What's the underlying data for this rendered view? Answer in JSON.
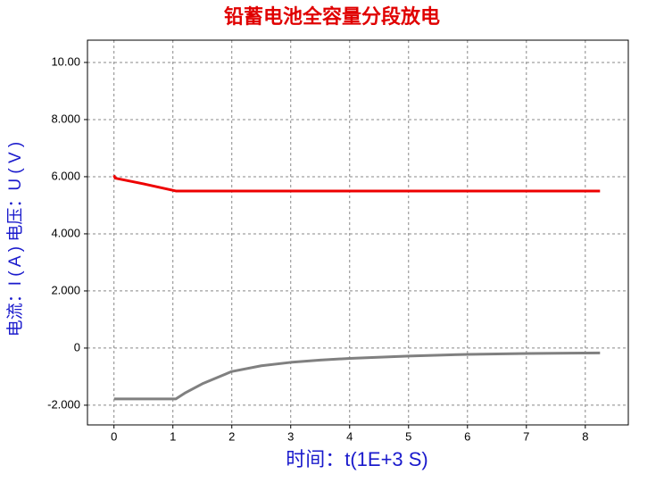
{
  "chart_data": {
    "type": "line",
    "title": "铅蓄电池全容量分段放电",
    "xlabel": "时间：t(1E+3 S)",
    "ylabel": "电流：I ( A )    电压：U ( V )",
    "x": [
      0,
      0.02,
      0.5,
      1.05,
      1.2,
      1.5,
      2,
      2.5,
      3,
      3.5,
      4,
      5,
      6,
      7,
      8.25
    ],
    "series": [
      {
        "name": "电压",
        "color": "#ee0000",
        "values": [
          6.05,
          5.95,
          5.75,
          5.5,
          5.5,
          5.5,
          5.5,
          5.5,
          5.5,
          5.5,
          5.5,
          5.5,
          5.5,
          5.5,
          5.5
        ]
      },
      {
        "name": "电流",
        "color": "#808080",
        "values": [
          -1.78,
          -1.78,
          -1.78,
          -1.78,
          -1.58,
          -1.25,
          -0.82,
          -0.62,
          -0.5,
          -0.42,
          -0.36,
          -0.28,
          -0.22,
          -0.19,
          -0.17
        ]
      }
    ],
    "xlim": [
      -0.45,
      8.73
    ],
    "ylim": [
      -2.69,
      10.78
    ],
    "xticks": [
      0,
      1,
      2,
      3,
      4,
      5,
      6,
      7,
      8
    ],
    "yticks": [
      {
        "value": -2,
        "label": "-2.000"
      },
      0,
      {
        "value": 2,
        "label": "2.000"
      },
      {
        "value": 4,
        "label": "4.000"
      },
      {
        "value": 6,
        "label": "6.000"
      },
      {
        "value": 8,
        "label": "8.000"
      },
      {
        "value": 10,
        "label": "10.00"
      }
    ],
    "grid": true
  }
}
